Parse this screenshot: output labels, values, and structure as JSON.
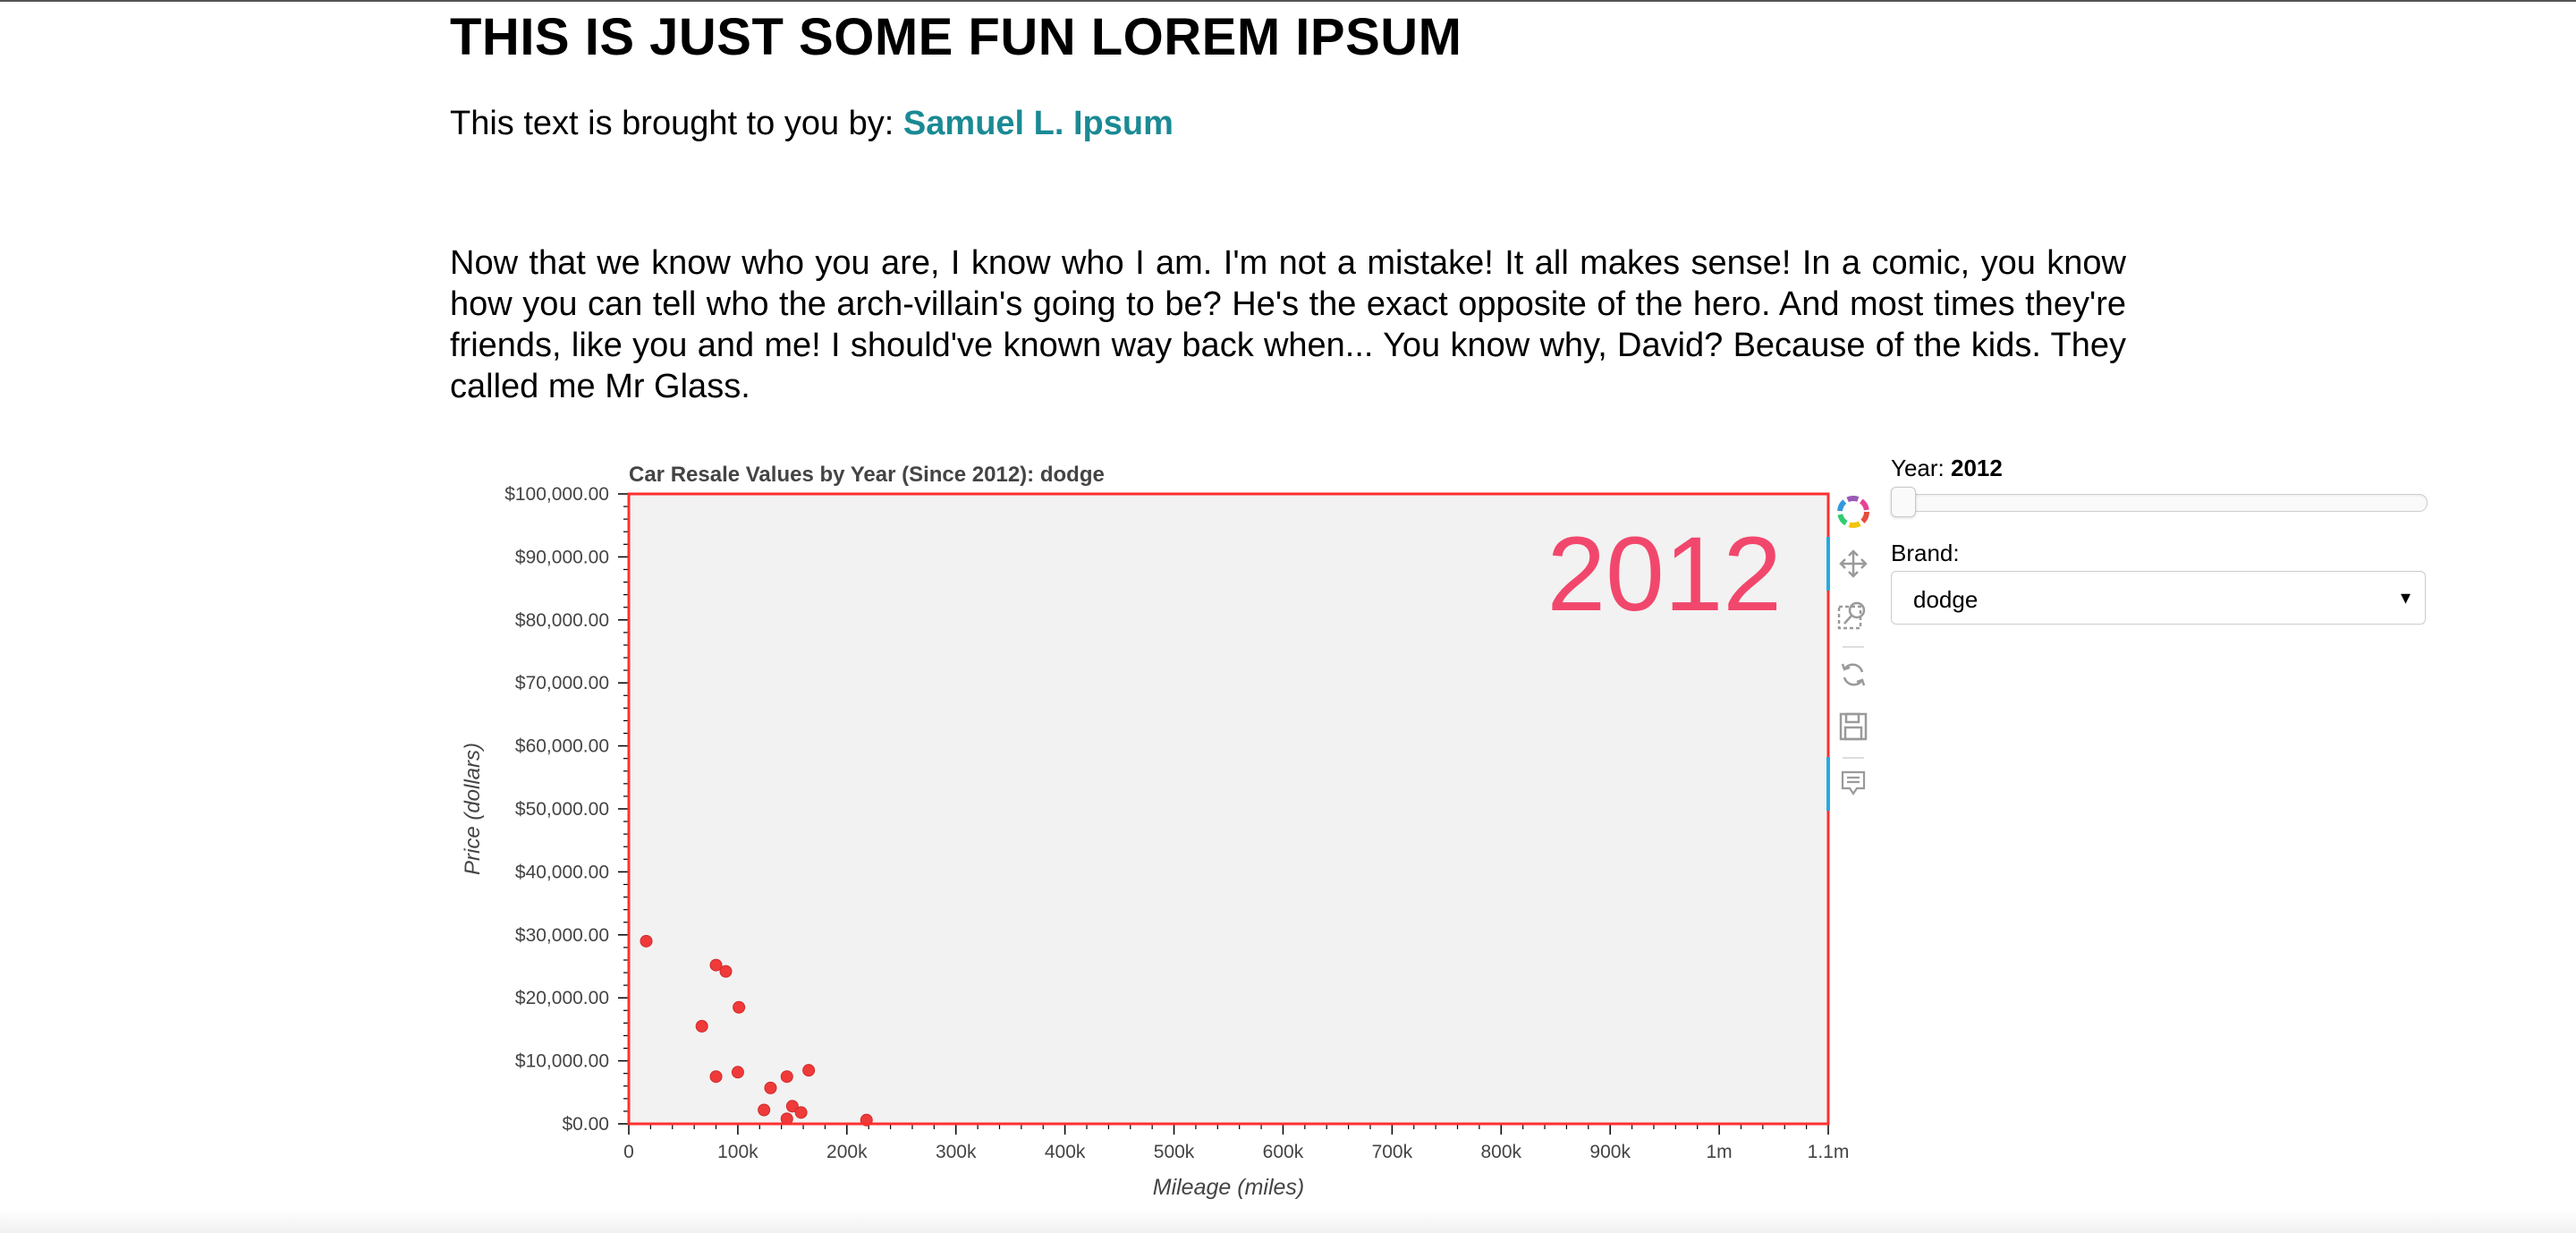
{
  "page": {
    "title": "THIS IS JUST SOME FUN LOREM IPSUM",
    "byline_prefix": "This text is brought to you by:",
    "byline_author": "Samuel L. Ipsum",
    "quote": "Now that we know who you are, I know who I am. I'm not a mistake! It all makes sense! In a comic, you know how you can tell who the arch-villain's going to be? He's the exact opposite of the hero. And most times they're friends, like you and me! I should've known way back when... You know why, David? Because of the kids. They called me Mr Glass."
  },
  "colors": {
    "point": "#f03a3a",
    "frame": "#ff3030",
    "plot_bg": "#f2f2f2",
    "year_overlay": "#f2476c",
    "link": "#1a8a94"
  },
  "chart_data": {
    "type": "scatter",
    "title": "Car Resale Values by Year (Since 2012): dodge",
    "xlabel": "Mileage (miles)",
    "ylabel": "Price (dollars)",
    "overlay_text": "2012",
    "xlim": [
      0,
      1100000
    ],
    "ylim": [
      0,
      100000
    ],
    "x_ticks": [
      0,
      100000,
      200000,
      300000,
      400000,
      500000,
      600000,
      700000,
      800000,
      900000,
      1000000,
      1100000
    ],
    "x_tick_labels": [
      "0",
      "100k",
      "200k",
      "300k",
      "400k",
      "500k",
      "600k",
      "700k",
      "800k",
      "900k",
      "1m",
      "1.1m"
    ],
    "y_ticks": [
      0,
      10000,
      20000,
      30000,
      40000,
      50000,
      60000,
      70000,
      80000,
      90000,
      100000
    ],
    "y_tick_labels": [
      "$0.00",
      "$10,000.00",
      "$20,000.00",
      "$30,000.00",
      "$40,000.00",
      "$50,000.00",
      "$60,000.00",
      "$70,000.00",
      "$80,000.00",
      "$90,000.00",
      "$100,000.00"
    ],
    "grid": false,
    "points": [
      {
        "x": 16000,
        "y": 29000
      },
      {
        "x": 80000,
        "y": 25200
      },
      {
        "x": 89000,
        "y": 24200
      },
      {
        "x": 101000,
        "y": 18500
      },
      {
        "x": 67000,
        "y": 15500
      },
      {
        "x": 80000,
        "y": 7500
      },
      {
        "x": 100000,
        "y": 8200
      },
      {
        "x": 130000,
        "y": 5700
      },
      {
        "x": 145000,
        "y": 7500
      },
      {
        "x": 165000,
        "y": 8500
      },
      {
        "x": 150000,
        "y": 2800
      },
      {
        "x": 124000,
        "y": 2200
      },
      {
        "x": 158000,
        "y": 1800
      },
      {
        "x": 145000,
        "y": 800
      },
      {
        "x": 218000,
        "y": 600
      }
    ]
  },
  "toolbar": {
    "icons": [
      "bokeh-logo-icon",
      "pan-icon",
      "box-zoom-icon",
      "reset-icon",
      "save-icon",
      "hover-icon"
    ]
  },
  "widgets": {
    "year_label": "Year:",
    "year_value": "2012",
    "brand_label": "Brand:",
    "brand_value": "dodge",
    "brand_caret": "▾"
  }
}
